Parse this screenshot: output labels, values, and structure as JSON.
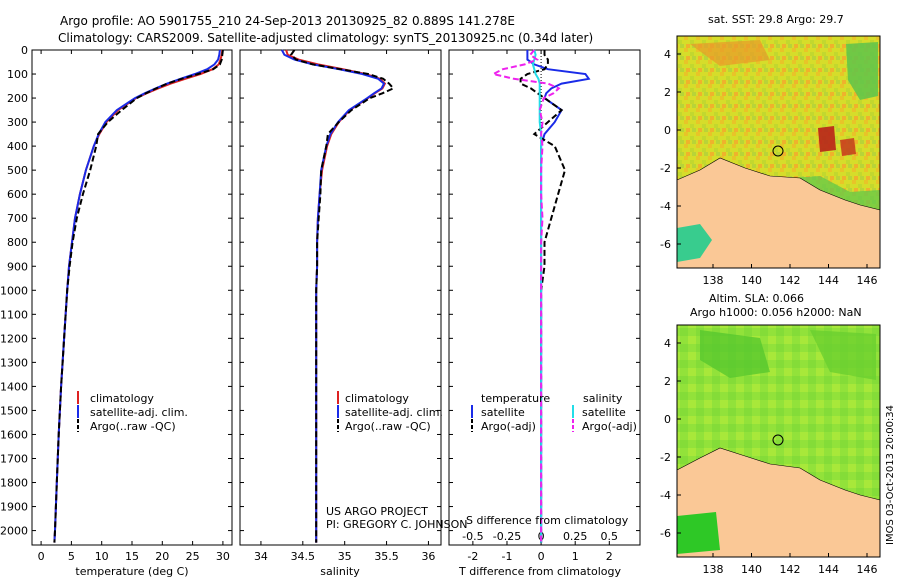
{
  "title_line1": "Argo profile: AO 5901755_210 24-Sep-2013 20130925_82 0.889S 141.278E",
  "title_line2": "Climatology: CARS2009. Satellite-adjusted climatology: synTS_20130925.nc (0.34d later)",
  "depth_ticks": [
    0,
    100,
    200,
    300,
    400,
    500,
    600,
    700,
    800,
    900,
    1000,
    1100,
    1200,
    1300,
    1400,
    1500,
    1600,
    1700,
    1800,
    1900,
    2000
  ],
  "colors": {
    "clim": "#dd2222",
    "sat": "#1a2be8",
    "argo": "#000000",
    "sal_sat": "#22dde8",
    "sal_argo": "#ee22ee"
  },
  "chart_data": [
    {
      "type": "line",
      "name": "temperature",
      "xlabel": "temperature (deg C)",
      "xlim": [
        -1.5,
        31.5
      ],
      "ylim": [
        2060,
        0
      ],
      "xticks": [
        0,
        5,
        10,
        15,
        20,
        25,
        30
      ],
      "depth": [
        0,
        20,
        40,
        60,
        80,
        100,
        120,
        140,
        160,
        180,
        200,
        250,
        300,
        350,
        400,
        500,
        600,
        700,
        800,
        900,
        1000,
        1200,
        1400,
        1600,
        1800,
        2000,
        2050
      ],
      "series": [
        {
          "name": "climatology",
          "values": [
            29.9,
            29.8,
            29.6,
            29.3,
            28.3,
            26.3,
            23.8,
            21.4,
            19.3,
            17.4,
            15.7,
            12.7,
            10.8,
            9.6,
            8.7,
            7.4,
            6.4,
            5.6,
            5.1,
            4.6,
            4.3,
            3.8,
            3.3,
            2.9,
            2.6,
            2.3,
            2.2
          ]
        },
        {
          "name": "satellite-adj. clim.",
          "values": [
            29.5,
            29.4,
            29.2,
            28.6,
            27.4,
            25.4,
            23.0,
            20.8,
            18.9,
            17.1,
            15.5,
            12.5,
            10.6,
            9.5,
            8.7,
            7.4,
            6.4,
            5.6,
            5.1,
            4.6,
            4.3,
            3.8,
            3.3,
            2.9,
            2.6,
            2.3,
            2.2
          ]
        },
        {
          "name": "Argo(..raw -QC)",
          "values": [
            30.0,
            29.9,
            29.8,
            29.5,
            28.4,
            25.9,
            23.2,
            20.8,
            19.0,
            17.3,
            15.8,
            13.3,
            11.0,
            9.4,
            9.1,
            8.1,
            6.9,
            5.9,
            5.2,
            4.7,
            4.3,
            3.8,
            3.3,
            2.9,
            2.6,
            2.3,
            2.2
          ]
        }
      ],
      "legend": [
        "climatology",
        "satellite-adj. clim.",
        "Argo(..raw -QC)"
      ]
    },
    {
      "type": "line",
      "name": "salinity",
      "xlabel": "salinity",
      "xlim": [
        33.75,
        36.15
      ],
      "ylim": [
        2060,
        0
      ],
      "xticks": [
        34,
        34.5,
        35,
        35.5,
        36
      ],
      "depth": [
        0,
        20,
        40,
        60,
        80,
        100,
        120,
        140,
        160,
        180,
        200,
        250,
        300,
        350,
        400,
        500,
        600,
        700,
        800,
        900,
        1000,
        1200,
        1400,
        1600,
        1800,
        2000,
        2050
      ],
      "series": [
        {
          "name": "climatology",
          "values": [
            34.3,
            34.32,
            34.45,
            34.68,
            34.98,
            35.25,
            35.42,
            35.48,
            35.45,
            35.36,
            35.28,
            35.06,
            34.93,
            34.84,
            34.79,
            34.73,
            34.7,
            34.68,
            34.67,
            34.67,
            34.66,
            34.66,
            34.66,
            34.66,
            34.66,
            34.66,
            34.66
          ]
        },
        {
          "name": "satellite-adj. clim.",
          "values": [
            34.25,
            34.28,
            34.4,
            34.62,
            34.93,
            35.21,
            35.4,
            35.47,
            35.44,
            35.35,
            35.27,
            35.05,
            34.92,
            34.83,
            34.78,
            34.72,
            34.7,
            34.68,
            34.67,
            34.67,
            34.66,
            34.66,
            34.66,
            34.66,
            34.66,
            34.66,
            34.66
          ]
        },
        {
          "name": "Argo(..raw -QC)",
          "values": [
            34.4,
            34.36,
            34.42,
            34.62,
            34.95,
            35.28,
            35.46,
            35.53,
            35.58,
            35.45,
            35.3,
            35.08,
            34.93,
            34.8,
            34.78,
            34.72,
            34.71,
            34.69,
            34.67,
            34.67,
            34.66,
            34.66,
            34.66,
            34.66,
            34.66,
            34.66,
            34.66
          ]
        }
      ],
      "legend": [
        "climatology",
        "satellite-adj. clim.",
        "Argo(..raw -QC)"
      ]
    },
    {
      "type": "line",
      "name": "difference from climatology",
      "xlabel": "T difference from climatology",
      "xlabel_top": "S difference from climatology",
      "xlim": [
        -2.7,
        2.9
      ],
      "ylim": [
        2060,
        0
      ],
      "xticks": [
        -2,
        -1,
        0,
        1,
        2
      ],
      "xticks_s": [
        -0.5,
        -0.25,
        0,
        0.25,
        0.5
      ],
      "xticks_s_labels": [
        "-0.5",
        "-0.25",
        "0",
        "0.25",
        "0.5"
      ],
      "depth": [
        0,
        20,
        40,
        60,
        80,
        100,
        120,
        140,
        160,
        180,
        200,
        250,
        300,
        350,
        400,
        500,
        600,
        700,
        800,
        900,
        1000,
        1200,
        1400,
        1600,
        1800,
        2000,
        2050
      ],
      "series": [
        {
          "name": "temperature satellite",
          "values": [
            -0.4,
            -0.4,
            -0.4,
            -0.2,
            0.2,
            1.3,
            1.4,
            0.6,
            0.3,
            0.15,
            0.1,
            0.6,
            0.4,
            0.1,
            0.0,
            0.0,
            0.0,
            0.0,
            0.0,
            0.0,
            0.0,
            0.0,
            0.0,
            0.0,
            0.0,
            0.0,
            0.0
          ]
        },
        {
          "name": "temperature Argo(-adj)",
          "values": [
            0.1,
            0.1,
            0.2,
            0.2,
            0.1,
            -0.4,
            -0.6,
            -0.6,
            -0.3,
            -0.1,
            0.1,
            0.6,
            0.2,
            -0.2,
            0.4,
            0.7,
            0.5,
            0.3,
            0.1,
            0.1,
            0.0,
            0.0,
            0.0,
            0.0,
            0.0,
            0.0,
            0.0
          ]
        },
        {
          "name": "salinity satellite",
          "values": [
            -0.05,
            -0.04,
            -0.05,
            -0.06,
            -0.05,
            -0.04,
            -0.02,
            -0.01,
            -0.01,
            -0.01,
            -0.01,
            -0.01,
            -0.01,
            0.0,
            0.0,
            0.0,
            0.0,
            0.0,
            0.0,
            0.0,
            0.0,
            0.0,
            0.0,
            0.0,
            0.0,
            0.0,
            0.0
          ]
        },
        {
          "name": "salinity Argo(-adj)",
          "values": [
            -0.05,
            -0.08,
            -0.03,
            -0.12,
            -0.28,
            -0.35,
            -0.2,
            0.05,
            0.13,
            0.09,
            0.02,
            -0.01,
            0.01,
            0.0,
            0.01,
            0.0,
            0.0,
            0.01,
            0.0,
            0.0,
            0.0,
            0.0,
            0.0,
            0.0,
            0.0,
            0.0,
            0.0
          ]
        }
      ],
      "legend_headers": [
        "temperature",
        "salinity"
      ],
      "legend": [
        "satellite",
        "Argo(-adj)",
        "satellite",
        "Argo(-adj)"
      ]
    }
  ],
  "maps": [
    {
      "title": "sat. SST: 29.8 Argo: 29.7",
      "yticks": [
        "4",
        "2",
        "0",
        "-2",
        "-4",
        "-6"
      ],
      "xticks": [
        "138",
        "140",
        "142",
        "144",
        "146"
      ]
    },
    {
      "title_line1": "Altim. SLA: 0.066",
      "title_line2": "Argo h1000: 0.056 h2000: NaN",
      "yticks": [
        "4",
        "2",
        "0",
        "-2",
        "-4",
        "-6"
      ],
      "xticks": [
        "138",
        "140",
        "142",
        "144",
        "146"
      ]
    }
  ],
  "credits": {
    "line1": "US ARGO PROJECT",
    "line2": "PI: GREGORY C. JOHNSON"
  },
  "side_stamp": "IMOS 03-Oct-2013 20:00:34"
}
